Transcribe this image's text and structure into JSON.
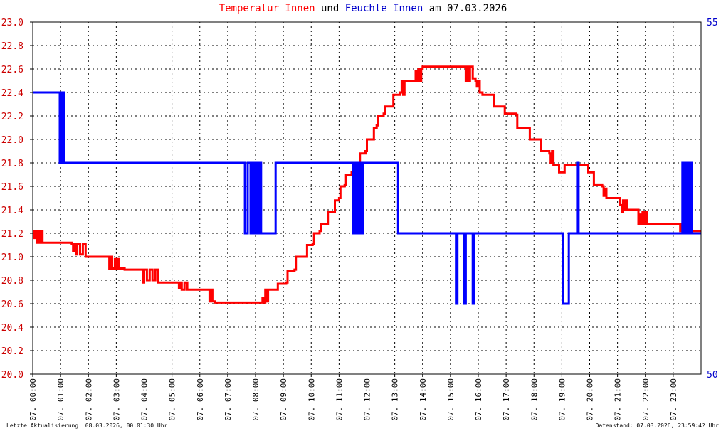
{
  "title": {
    "part1": "Temperatur Innen",
    "part2": " und ",
    "part3": "Feuchte Innen",
    "part4": " am 07.03.2026"
  },
  "footer": {
    "left": "Letzte Aktualisierung: 08.03.2026, 00:01:30 Uhr",
    "right": "Datenstand: 07.03.2026, 23:59:42 Uhr"
  },
  "colors": {
    "temperature": "#ff0000",
    "humidity": "#0000ff",
    "left_axis_text": "#cc0000",
    "right_axis_text": "#0000cc",
    "grid": "#000000",
    "frame": "#000000"
  },
  "chart_data": {
    "type": "line",
    "grid": true,
    "x_ticks": [
      "07. 00:00",
      "07. 01:00",
      "07. 02:00",
      "07. 03:00",
      "07. 04:00",
      "07. 05:00",
      "07. 06:00",
      "07. 07:00",
      "07. 08:00",
      "07. 09:00",
      "07. 10:00",
      "07. 11:00",
      "07. 12:00",
      "07. 13:00",
      "07. 14:00",
      "07. 15:00",
      "07. 16:00",
      "07. 17:00",
      "07. 18:00",
      "07. 19:00",
      "07. 20:00",
      "07. 21:00",
      "07. 22:00",
      "07. 23:00"
    ],
    "y_left": {
      "ylim": [
        20.0,
        23.0
      ],
      "ticks": [
        "20.0",
        "20.2",
        "20.4",
        "20.6",
        "20.8",
        "21.0",
        "21.2",
        "21.4",
        "21.6",
        "21.8",
        "22.0",
        "22.2",
        "22.4",
        "22.6",
        "22.8",
        "23.0"
      ]
    },
    "y_right": {
      "ylim": [
        50,
        55
      ],
      "ticks": [
        "50",
        "55"
      ]
    },
    "xlim": [
      0,
      24
    ],
    "series": [
      {
        "name": "Temperatur Innen",
        "axis": "left",
        "points": [
          [
            0.0,
            21.22
          ],
          [
            0.05,
            21.16
          ],
          [
            0.1,
            21.22
          ],
          [
            0.15,
            21.12
          ],
          [
            0.2,
            21.22
          ],
          [
            0.25,
            21.12
          ],
          [
            0.3,
            21.22
          ],
          [
            0.35,
            21.12
          ],
          [
            0.5,
            21.12
          ],
          [
            1.4,
            21.11
          ],
          [
            1.45,
            21.05
          ],
          [
            1.5,
            21.11
          ],
          [
            1.55,
            21.02
          ],
          [
            1.6,
            21.11
          ],
          [
            1.7,
            21.02
          ],
          [
            1.8,
            21.11
          ],
          [
            1.9,
            21.0
          ],
          [
            2.7,
            21.0
          ],
          [
            2.75,
            20.9
          ],
          [
            2.8,
            21.0
          ],
          [
            2.85,
            20.9
          ],
          [
            2.95,
            20.98
          ],
          [
            3.0,
            20.9
          ],
          [
            3.05,
            20.98
          ],
          [
            3.1,
            20.9
          ],
          [
            3.3,
            20.89
          ],
          [
            3.9,
            20.89
          ],
          [
            3.95,
            20.78
          ],
          [
            4.0,
            20.89
          ],
          [
            4.1,
            20.8
          ],
          [
            4.2,
            20.89
          ],
          [
            4.3,
            20.8
          ],
          [
            4.4,
            20.89
          ],
          [
            4.5,
            20.78
          ],
          [
            5.2,
            20.78
          ],
          [
            5.25,
            20.73
          ],
          [
            5.3,
            20.78
          ],
          [
            5.35,
            20.72
          ],
          [
            5.45,
            20.78
          ],
          [
            5.55,
            20.72
          ],
          [
            6.3,
            20.72
          ],
          [
            6.35,
            20.62
          ],
          [
            6.4,
            20.72
          ],
          [
            6.45,
            20.62
          ],
          [
            6.55,
            20.61
          ],
          [
            8.2,
            20.61
          ],
          [
            8.25,
            20.65
          ],
          [
            8.3,
            20.61
          ],
          [
            8.35,
            20.72
          ],
          [
            8.4,
            20.62
          ],
          [
            8.45,
            20.72
          ],
          [
            8.75,
            20.72
          ],
          [
            8.8,
            20.77
          ],
          [
            9.1,
            20.78
          ],
          [
            9.15,
            20.88
          ],
          [
            9.4,
            20.89
          ],
          [
            9.45,
            21.0
          ],
          [
            9.8,
            21.0
          ],
          [
            9.85,
            21.1
          ],
          [
            10.05,
            21.11
          ],
          [
            10.1,
            21.2
          ],
          [
            10.3,
            21.22
          ],
          [
            10.35,
            21.28
          ],
          [
            10.55,
            21.28
          ],
          [
            10.6,
            21.38
          ],
          [
            10.8,
            21.38
          ],
          [
            10.85,
            21.48
          ],
          [
            11.0,
            21.5
          ],
          [
            11.05,
            21.6
          ],
          [
            11.2,
            21.61
          ],
          [
            11.25,
            21.7
          ],
          [
            11.45,
            21.72
          ],
          [
            11.5,
            21.78
          ],
          [
            11.7,
            21.8
          ],
          [
            11.75,
            21.88
          ],
          [
            11.95,
            21.9
          ],
          [
            12.0,
            22.0
          ],
          [
            12.2,
            22.0
          ],
          [
            12.25,
            22.1
          ],
          [
            12.35,
            22.12
          ],
          [
            12.4,
            22.2
          ],
          [
            12.6,
            22.22
          ],
          [
            12.65,
            22.28
          ],
          [
            12.9,
            22.28
          ],
          [
            12.95,
            22.38
          ],
          [
            13.2,
            22.4
          ],
          [
            13.25,
            22.5
          ],
          [
            13.3,
            22.38
          ],
          [
            13.35,
            22.5
          ],
          [
            13.7,
            22.5
          ],
          [
            13.75,
            22.58
          ],
          [
            13.8,
            22.5
          ],
          [
            13.85,
            22.6
          ],
          [
            13.9,
            22.5
          ],
          [
            13.95,
            22.6
          ],
          [
            14.0,
            22.62
          ],
          [
            15.5,
            22.62
          ],
          [
            15.55,
            22.5
          ],
          [
            15.6,
            22.62
          ],
          [
            15.65,
            22.5
          ],
          [
            15.7,
            22.62
          ],
          [
            15.8,
            22.52
          ],
          [
            15.9,
            22.5
          ],
          [
            15.95,
            22.45
          ],
          [
            16.0,
            22.5
          ],
          [
            16.05,
            22.4
          ],
          [
            16.15,
            22.38
          ],
          [
            16.5,
            22.38
          ],
          [
            16.55,
            22.28
          ],
          [
            16.9,
            22.28
          ],
          [
            16.95,
            22.22
          ],
          [
            17.35,
            22.21
          ],
          [
            17.4,
            22.1
          ],
          [
            17.8,
            22.1
          ],
          [
            17.85,
            22.0
          ],
          [
            18.2,
            22.0
          ],
          [
            18.25,
            21.9
          ],
          [
            18.55,
            21.88
          ],
          [
            18.6,
            21.8
          ],
          [
            18.65,
            21.9
          ],
          [
            18.7,
            21.78
          ],
          [
            18.85,
            21.78
          ],
          [
            18.9,
            21.72
          ],
          [
            19.05,
            21.72
          ],
          [
            19.1,
            21.78
          ],
          [
            19.9,
            21.78
          ],
          [
            19.95,
            21.72
          ],
          [
            20.1,
            21.72
          ],
          [
            20.15,
            21.61
          ],
          [
            20.45,
            21.6
          ],
          [
            20.5,
            21.52
          ],
          [
            20.55,
            21.58
          ],
          [
            20.6,
            21.5
          ],
          [
            21.05,
            21.5
          ],
          [
            21.1,
            21.44
          ],
          [
            21.15,
            21.38
          ],
          [
            21.2,
            21.48
          ],
          [
            21.25,
            21.4
          ],
          [
            21.3,
            21.48
          ],
          [
            21.35,
            21.4
          ],
          [
            21.7,
            21.4
          ],
          [
            21.75,
            21.28
          ],
          [
            21.8,
            21.36
          ],
          [
            21.85,
            21.28
          ],
          [
            21.9,
            21.38
          ],
          [
            21.95,
            21.28
          ],
          [
            22.0,
            21.38
          ],
          [
            22.05,
            21.28
          ],
          [
            23.2,
            21.28
          ],
          [
            23.25,
            21.22
          ],
          [
            23.3,
            21.28
          ],
          [
            23.35,
            21.22
          ],
          [
            23.4,
            21.28
          ],
          [
            23.45,
            21.22
          ],
          [
            23.5,
            21.22
          ]
        ]
      },
      {
        "name": "Feuchte Innen",
        "axis": "right",
        "points": [
          [
            0.0,
            54.0
          ],
          [
            0.95,
            54.0
          ],
          [
            0.97,
            53.0
          ],
          [
            0.99,
            54.0
          ],
          [
            1.01,
            53.0
          ],
          [
            1.03,
            54.0
          ],
          [
            1.05,
            53.0
          ],
          [
            1.07,
            54.0
          ],
          [
            1.09,
            53.0
          ],
          [
            1.11,
            54.0
          ],
          [
            1.13,
            53.0
          ],
          [
            7.6,
            53.0
          ],
          [
            7.62,
            52.0
          ],
          [
            7.7,
            52.0
          ],
          [
            7.72,
            53.0
          ],
          [
            7.8,
            53.0
          ],
          [
            7.82,
            52.0
          ],
          [
            7.88,
            53.0
          ],
          [
            7.9,
            52.0
          ],
          [
            7.95,
            53.0
          ],
          [
            8.0,
            52.0
          ],
          [
            8.05,
            53.0
          ],
          [
            8.1,
            52.0
          ],
          [
            8.15,
            53.0
          ],
          [
            8.2,
            52.0
          ],
          [
            8.7,
            52.0
          ],
          [
            8.72,
            53.0
          ],
          [
            11.45,
            53.0
          ],
          [
            11.5,
            52.0
          ],
          [
            11.55,
            53.0
          ],
          [
            11.6,
            52.0
          ],
          [
            11.65,
            53.0
          ],
          [
            11.7,
            52.0
          ],
          [
            11.75,
            53.0
          ],
          [
            11.8,
            52.0
          ],
          [
            11.85,
            53.0
          ],
          [
            13.1,
            53.0
          ],
          [
            13.12,
            52.0
          ],
          [
            15.15,
            52.0
          ],
          [
            15.2,
            51.0
          ],
          [
            15.25,
            52.0
          ],
          [
            15.45,
            52.0
          ],
          [
            15.5,
            51.0
          ],
          [
            15.55,
            52.0
          ],
          [
            15.75,
            52.0
          ],
          [
            15.8,
            51.0
          ],
          [
            15.85,
            52.0
          ],
          [
            19.0,
            52.0
          ],
          [
            19.05,
            51.0
          ],
          [
            19.2,
            51.0
          ],
          [
            19.25,
            52.0
          ],
          [
            19.5,
            52.0
          ],
          [
            19.55,
            53.0
          ],
          [
            19.6,
            52.0
          ],
          [
            23.3,
            52.0
          ],
          [
            23.33,
            53.0
          ],
          [
            23.36,
            52.0
          ],
          [
            23.39,
            53.0
          ],
          [
            23.42,
            52.0
          ],
          [
            23.45,
            53.0
          ],
          [
            23.48,
            52.0
          ],
          [
            23.51,
            53.0
          ],
          [
            23.54,
            52.0
          ],
          [
            23.57,
            53.0
          ],
          [
            23.6,
            52.0
          ],
          [
            23.63,
            53.0
          ],
          [
            23.66,
            52.0
          ]
        ]
      }
    ]
  }
}
